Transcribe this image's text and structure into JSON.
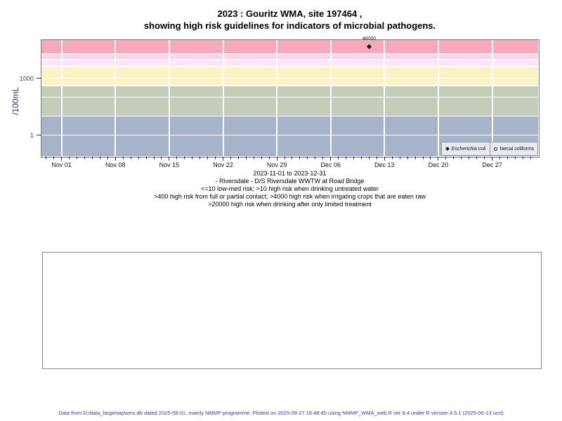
{
  "title": {
    "line1": "2023 : Gouritz WMA, site 197464 ,",
    "line2": "showing high risk guidelines for indicators of microbial pathogens."
  },
  "chart_data": {
    "type": "scatter",
    "title": "2023 : Gouritz WMA, site 197464 , showing high risk guidelines for indicators of microbial pathogens.",
    "xlabel": "",
    "ylabel": "/100mL",
    "x_axis": {
      "start_date": "2023-11-01",
      "end_date": "2023-12-31",
      "major_tick_labels": [
        "Nov 01",
        "Nov 08",
        "Nov 15",
        "Nov 22",
        "Nov 29",
        "Dec 06",
        "Dec 13",
        "Dec 20",
        "Dec 27"
      ],
      "major_tick_days": [
        0,
        7,
        14,
        21,
        28,
        35,
        42,
        49,
        56
      ],
      "minor_tick_day_range": [
        -2,
        61
      ]
    },
    "y_axis": {
      "scale": "log10",
      "tick_values": [
        1000,
        1
      ],
      "tick_labels": [
        "1000",
        "1"
      ],
      "ylim": [
        0.07,
        110000
      ]
    },
    "risk_bands": [
      {
        "range": ">20000",
        "from": 20000,
        "to": 110000,
        "color": "#f7a8bb"
      },
      {
        "range": "10000-20000",
        "from": 10000,
        "to": 20000,
        "color": "#f9d4ec"
      },
      {
        "range": "4000-10000",
        "from": 4000,
        "to": 10000,
        "color": "#fce6f7"
      },
      {
        "range": "400-4000",
        "from": 400,
        "to": 4000,
        "color": "#faf3c6"
      },
      {
        "range": "10-400",
        "from": 10,
        "to": 400,
        "color": "#c4cdb9"
      },
      {
        "range": "<=10",
        "from": 0.07,
        "to": 10,
        "color": "#a7b3cb"
      }
    ],
    "h_gridline_values": [
      1,
      10,
      100,
      400,
      1000,
      4000,
      10000,
      20000
    ],
    "series": [
      {
        "name": "Escherichia coli",
        "marker": "filled-diamond",
        "points": [
          {
            "date": "2023-12-11",
            "value": 48000,
            "label": "48000"
          }
        ]
      },
      {
        "name": "faecal coliforms",
        "marker": "open-circle",
        "points": []
      }
    ],
    "legend": [
      {
        "label": "Escherichia coli",
        "marker": "filled-diamond"
      },
      {
        "label": "faecal coliforms",
        "marker": "open-circle"
      }
    ]
  },
  "caption": {
    "lines": [
      "2023-11-01 to 2023-12-31",
      "- Riversdale - D/S Riversdale WWTW at Road Bridge",
      "<=10 low-med risk; >10 high risk when drinking untreated water",
      ">400 high risk from full or partial contact; >4000 high risk when irrigating crops that are eaten raw",
      ">20000 high risk when drinking after only limited treatment"
    ]
  },
  "footer": {
    "text": "Data from D:/data_large/wq/wms.db dated 2025-08-01, mainly NMMP programme. Plotted on 2025-09-27 16:48:45 using NMMP_WMA_web.R ver 9.4 under R version 4.5.1 (2025-06-13 ucrt)"
  }
}
